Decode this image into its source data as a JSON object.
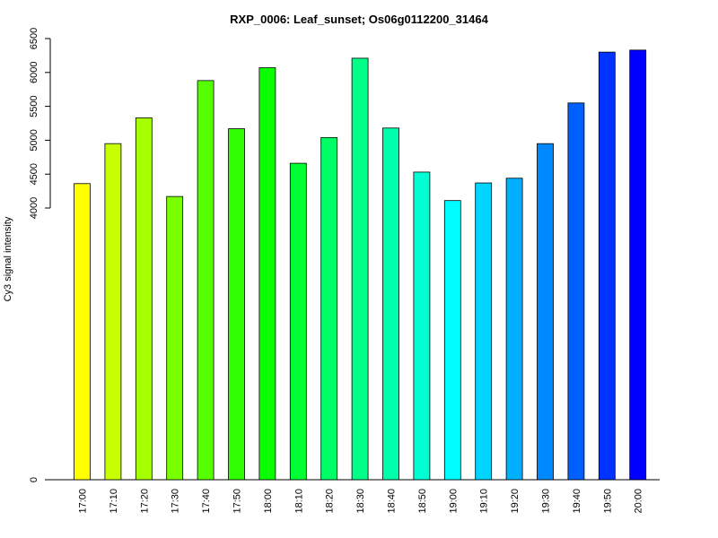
{
  "chart_data": {
    "type": "bar",
    "title": "RXP_0006: Leaf_sunset; Os06g0112200_31464",
    "xlabel": "",
    "ylabel": "Cy3 signal intensity",
    "categories": [
      "17:00",
      "17:10",
      "17:20",
      "17:30",
      "17:40",
      "17:50",
      "18:00",
      "18:10",
      "18:20",
      "18:30",
      "18:40",
      "18:50",
      "19:00",
      "19:10",
      "19:20",
      "19:30",
      "19:40",
      "19:50",
      "20:00"
    ],
    "values": [
      4360,
      4950,
      5330,
      4170,
      5880,
      5170,
      6070,
      4660,
      5040,
      6210,
      5180,
      4530,
      4110,
      4370,
      4440,
      4950,
      5550,
      6300,
      6330
    ],
    "colors": [
      "#ffff00",
      "#c8ff00",
      "#a6ff00",
      "#7aff00",
      "#55ff00",
      "#2fff00",
      "#0aff00",
      "#00ff33",
      "#00ff66",
      "#00ff88",
      "#00ffaa",
      "#00ffd2",
      "#00fcff",
      "#00d4ff",
      "#00b0ff",
      "#0088ff",
      "#0060ff",
      "#0033ff",
      "#0000ff"
    ],
    "y_ticks": [
      "0",
      "4000",
      "4500",
      "5000",
      "5500",
      "6000",
      "6500"
    ],
    "y_tick_values": [
      0,
      4000,
      4500,
      5000,
      5500,
      6000,
      6500
    ],
    "y_scale": "broken (0 then 4000–6500)",
    "grid": false,
    "legend": "none"
  }
}
